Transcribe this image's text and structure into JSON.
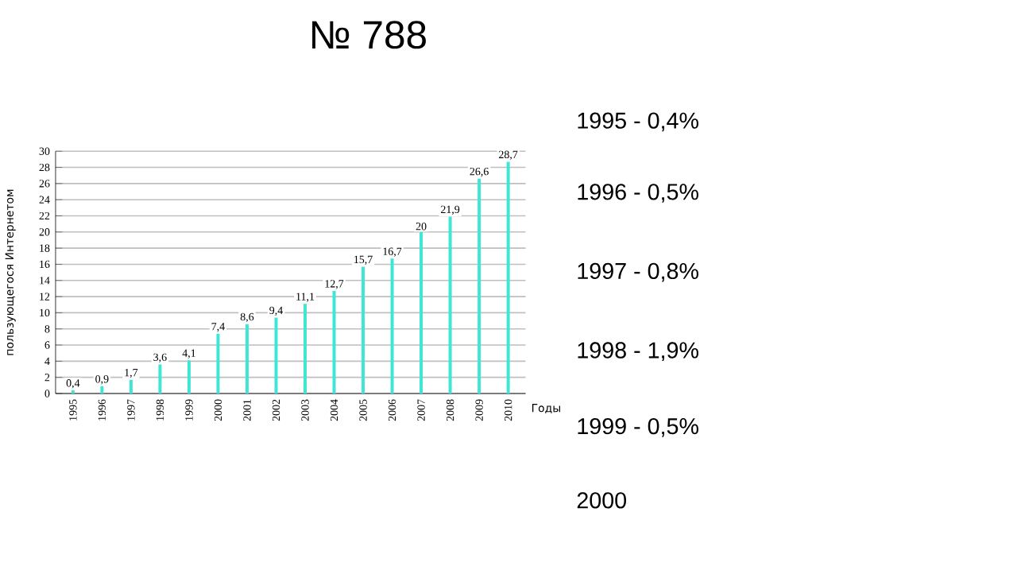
{
  "chart_data": {
    "type": "bar",
    "title": "№ 788",
    "xlabel": "Годы",
    "ylabel": "пользующегося Интернетом",
    "categories": [
      "1995",
      "1996",
      "1997",
      "1998",
      "1999",
      "2000",
      "2001",
      "2002",
      "2003",
      "2004",
      "2005",
      "2006",
      "2007",
      "2008",
      "2009",
      "2010"
    ],
    "values": [
      0.4,
      0.9,
      1.7,
      3.6,
      4.1,
      7.4,
      8.6,
      9.4,
      11.1,
      12.7,
      15.7,
      16.7,
      20,
      21.9,
      26.6,
      28.7
    ],
    "value_labels": [
      "0,4",
      "0,9",
      "1,7",
      "3,6",
      "4,1",
      "7,4",
      "8,6",
      "9,4",
      "11,1",
      "12,7",
      "15,7",
      "16,7",
      "20",
      "21,9",
      "26,6",
      "28,7"
    ],
    "color": "#3ee6d6",
    "ylim": [
      0,
      30
    ],
    "yticks": [
      0,
      2,
      4,
      6,
      8,
      10,
      12,
      14,
      16,
      18,
      20,
      22,
      24,
      26,
      28,
      30
    ],
    "grid": "y",
    "annotations": [
      "1995 - 0,4%",
      "1996 - 0,5%",
      "1997 - 0,8%",
      "1998 - 1,9%",
      "1999 - 0,5%",
      "2000"
    ]
  }
}
